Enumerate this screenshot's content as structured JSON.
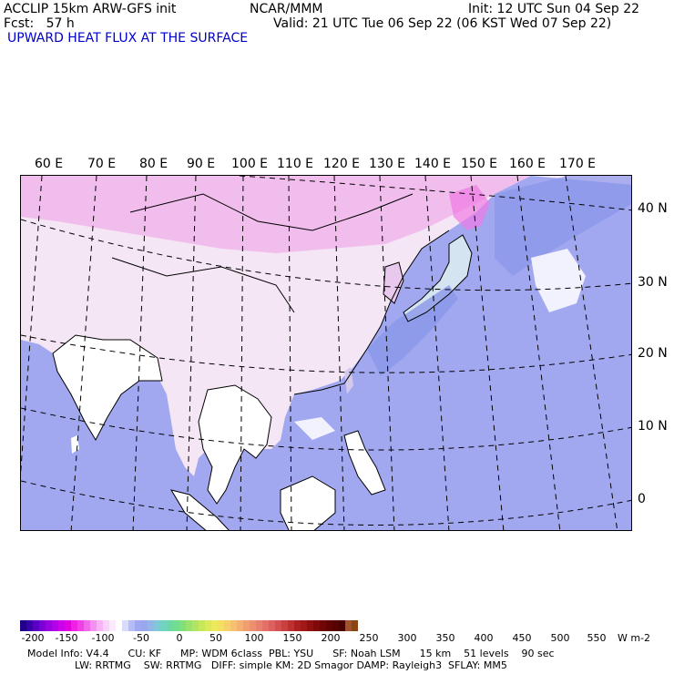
{
  "header": {
    "line1_left": "ACCLIP 15km ARW-GFS init",
    "line1_mid": "NCAR/MMM",
    "line1_right": "Init: 12 UTC Sun 04 Sep 22",
    "line2_left": "Fcst:   57 h",
    "line2_right": "Valid: 21 UTC Tue 06 Sep 22 (06 KST Wed 07 Sep 22)",
    "field_title": "UPWARD HEAT FLUX AT THE SURFACE"
  },
  "map": {
    "lon_labels": [
      "60 E",
      "70 E",
      "80 E",
      "90 E",
      "100 E",
      "110 E",
      "120 E",
      "130 E",
      "140 E",
      "150 E",
      "160 E",
      "170 E"
    ],
    "lat_labels": [
      "40 N",
      "30 N",
      "20 N",
      "10 N",
      "0"
    ]
  },
  "colorbar": {
    "tick_labels": [
      "-200",
      "-150",
      "-100",
      "-50",
      "0",
      "50",
      "100",
      "150",
      "200",
      "250",
      "300",
      "350",
      "400",
      "450",
      "500",
      "550"
    ],
    "unit": "W m-2",
    "colors": [
      "#20008a",
      "#3a00a8",
      "#5a00c4",
      "#7a00d8",
      "#9a00e0",
      "#b400e6",
      "#cc00e8",
      "#e000e0",
      "#f020e4",
      "#f040e8",
      "#f068ec",
      "#f490f0",
      "#f6b4f4",
      "#f8d2f8",
      "#fbeafb",
      "#ffffff",
      "#d8dcfa",
      "#b6bdf6",
      "#a0a8f2",
      "#9aa6ee",
      "#92b6e6",
      "#7fc8d6",
      "#72d4c0",
      "#6cd8a6",
      "#72dc90",
      "#82e07c",
      "#9ae26e",
      "#b2e464",
      "#c6e85a",
      "#dcea5a",
      "#ecea5c",
      "#f4e060",
      "#f6d068",
      "#f6c070",
      "#f4b070",
      "#f0a070",
      "#ec9070",
      "#e88070",
      "#e47068",
      "#dc6060",
      "#d45050",
      "#c84040",
      "#bc3030",
      "#ae2020",
      "#a01818",
      "#901010",
      "#800a0a",
      "#700606",
      "#620404",
      "#560202",
      "#4a0000",
      "#a0522d",
      "#8b4513"
    ]
  },
  "footer": {
    "line1": "Model Info: V4.4      CU: KF      MP: WDM 6class  PBL: YSU      SF: Noah LSM      15 km    51 levels    90 sec",
    "line2": "LW: RRTMG    SW: RRTMG   DIFF: simple KM: 2D Smagor DAMP: Rayleigh3  SFLAY: MM5"
  }
}
